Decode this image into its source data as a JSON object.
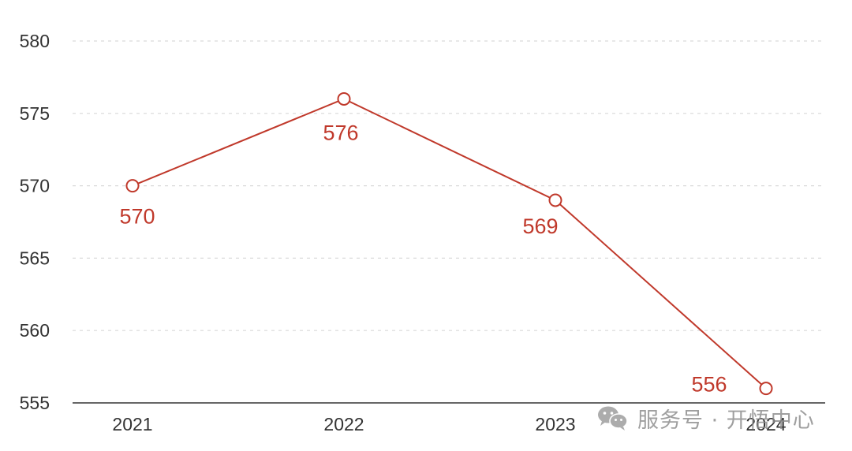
{
  "chart_data": {
    "type": "line",
    "x": [
      "2021",
      "2022",
      "2023",
      "2024"
    ],
    "series": [
      {
        "values": [
          570,
          576,
          569,
          556
        ],
        "color": "#c0392b"
      }
    ],
    "data_labels": [
      "570",
      "576",
      "569",
      "556"
    ],
    "ylim": [
      555,
      580
    ],
    "yticks": [
      555,
      560,
      565,
      570,
      575,
      580
    ],
    "ytick_labels": [
      "555",
      "560",
      "565",
      "570",
      "575",
      "580"
    ],
    "grid": true,
    "marker": "hollow-circle"
  },
  "watermark": {
    "icon": "wechat-icon",
    "text": "服务号 · 开悟中心"
  }
}
